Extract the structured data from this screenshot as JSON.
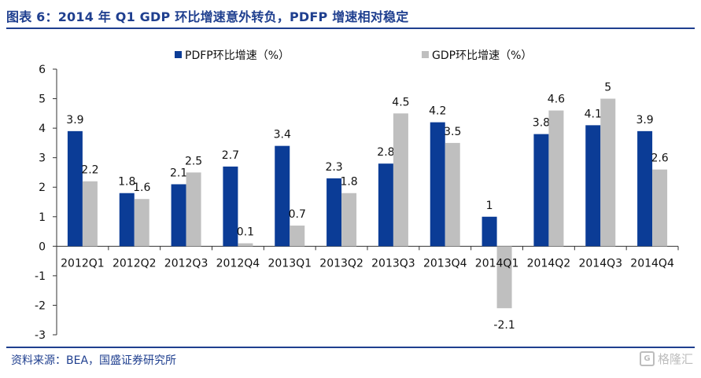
{
  "header": {
    "title": "图表 6：2014 年 Q1 GDP 环比增速意外转负，PDFP 增速相对稳定"
  },
  "footer": {
    "source": "资料来源：BEA，国盛证券研究所",
    "watermark_text": "格隆汇",
    "watermark_icon": "G"
  },
  "chart_data": {
    "type": "bar",
    "categories": [
      "2012Q1",
      "2012Q2",
      "2012Q3",
      "2012Q4",
      "2013Q1",
      "2013Q2",
      "2013Q3",
      "2013Q4",
      "2014Q1",
      "2014Q2",
      "2014Q3",
      "2014Q4"
    ],
    "series": [
      {
        "name": "PDFP环比增速（%）",
        "color": "#0b3c96",
        "values": [
          3.9,
          1.8,
          2.1,
          2.7,
          3.4,
          2.3,
          2.8,
          4.2,
          1.0,
          3.8,
          4.1,
          3.9
        ],
        "labels": [
          "3.9",
          "1.8",
          "2.1",
          "2.7",
          "3.4",
          "2.3",
          "2.8",
          "4.2",
          "1",
          "3.8",
          "4.1",
          "3.9"
        ]
      },
      {
        "name": "GDP环比增速（%）",
        "color": "#bfbfbf",
        "values": [
          2.2,
          1.6,
          2.5,
          0.1,
          0.7,
          1.8,
          4.5,
          3.5,
          -2.1,
          4.6,
          5.0,
          2.6
        ],
        "labels": [
          "2.2",
          "1.6",
          "2.5",
          "0.1",
          "0.7",
          "1.8",
          "4.5",
          "3.5",
          "-2.1",
          "4.6",
          "5",
          "2.6"
        ]
      }
    ],
    "ylim": [
      -3,
      6
    ],
    "yticks": [
      "6",
      "5",
      "4",
      "3",
      "2",
      "1",
      "0",
      "-1",
      "-2",
      "-3"
    ],
    "legend_position": "top",
    "grid": false
  }
}
